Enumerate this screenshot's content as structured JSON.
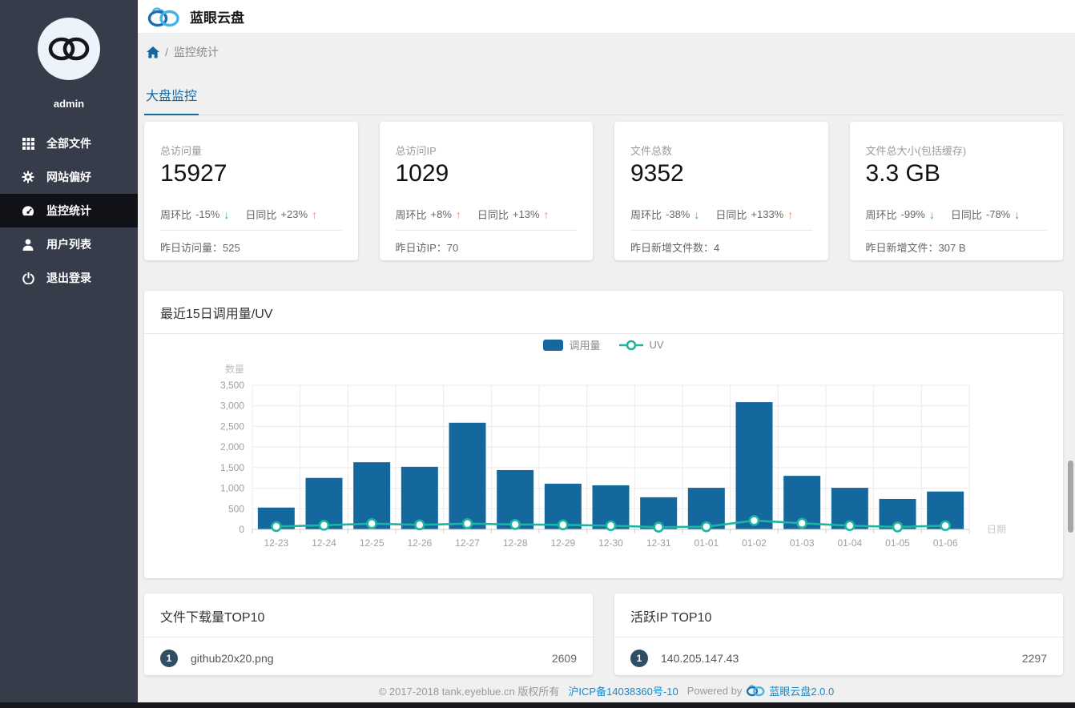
{
  "app": {
    "title": "蓝眼云盘"
  },
  "sidebar": {
    "username": "admin",
    "items": [
      {
        "label": "全部文件",
        "icon": "grid-icon",
        "active": false
      },
      {
        "label": "网站偏好",
        "icon": "gear-icon",
        "active": false
      },
      {
        "label": "监控统计",
        "icon": "dashboard-icon",
        "active": true
      },
      {
        "label": "用户列表",
        "icon": "user-icon",
        "active": false
      },
      {
        "label": "退出登录",
        "icon": "power-icon",
        "active": false
      }
    ]
  },
  "breadcrumb": {
    "separator": "/",
    "current": "监控统计"
  },
  "tabs": {
    "active_label": "大盘监控"
  },
  "icons": {
    "arrow_up": "↑",
    "arrow_down": "↓"
  },
  "stat_cards": [
    {
      "label": "总访问量",
      "value": "15927",
      "trends": [
        {
          "label": "周环比",
          "value": "-15%",
          "direction": "down"
        },
        {
          "label": "日同比",
          "value": "+23%",
          "direction": "up"
        }
      ],
      "footer_label": "昨日访问量：",
      "footer_value": "525"
    },
    {
      "label": "总访问IP",
      "value": "1029",
      "trends": [
        {
          "label": "周环比",
          "value": "+8%",
          "direction": "up"
        },
        {
          "label": "日同比",
          "value": "+13%",
          "direction": "up"
        }
      ],
      "footer_label": "昨日访IP：",
      "footer_value": "70"
    },
    {
      "label": "文件总数",
      "value": "9352",
      "trends": [
        {
          "label": "周环比",
          "value": "-38%",
          "direction": "down"
        },
        {
          "label": "日同比",
          "value": "+133%",
          "direction": "up"
        }
      ],
      "footer_label": "昨日新增文件数：",
      "footer_value": "4"
    },
    {
      "label": "文件总大小(包括缓存)",
      "value": "3.3 GB",
      "trends": [
        {
          "label": "周环比",
          "value": "-99%",
          "direction": "down"
        },
        {
          "label": "日同比",
          "value": "-78%",
          "direction": "down"
        }
      ],
      "footer_label": "昨日新增文件：",
      "footer_value": "307 B"
    }
  ],
  "chart_card": {
    "title": "最近15日调用量/UV"
  },
  "chart_data": {
    "type": "bar",
    "title": "最近15日调用量/UV",
    "categories": [
      "12-23",
      "12-24",
      "12-25",
      "12-26",
      "12-27",
      "12-28",
      "12-29",
      "12-30",
      "12-31",
      "01-01",
      "01-02",
      "01-03",
      "01-04",
      "01-05",
      "01-06"
    ],
    "series": [
      {
        "name": "调用量",
        "type": "bar",
        "color": "#15689e",
        "values": [
          530,
          1250,
          1630,
          1520,
          2590,
          1440,
          1110,
          1070,
          780,
          1010,
          3090,
          1300,
          1010,
          740,
          920
        ]
      },
      {
        "name": "UV",
        "type": "line",
        "color": "#1cb5a0",
        "values": [
          70,
          100,
          140,
          110,
          140,
          120,
          110,
          90,
          55,
          65,
          215,
          150,
          90,
          60,
          90
        ]
      }
    ],
    "xlabel": "日期",
    "ylabel": "数量",
    "ylim": [
      0,
      3500
    ],
    "yticks": [
      "0",
      "500",
      "1,000",
      "1,500",
      "2,000",
      "2,500",
      "3,000",
      "3,500"
    ],
    "grid": true,
    "legend_position": "top-center"
  },
  "top_lists": [
    {
      "title": "文件下载量TOP10",
      "items": [
        {
          "rank": "1",
          "label": "github20x20.png",
          "value": "2609"
        }
      ]
    },
    {
      "title": "活跃IP TOP10",
      "items": [
        {
          "rank": "1",
          "label": "140.205.147.43",
          "value": "2297"
        }
      ]
    }
  ],
  "footer": {
    "copyright": "© 2017-2018 tank.eyeblue.cn 版权所有",
    "icp_link": "沪ICP备14038360号-10",
    "powered_by": "Powered by",
    "product_link": "蓝眼云盘2.0.0"
  },
  "colors": {
    "accent_blue": "#15689e",
    "bar_blue": "#15689e",
    "line_teal": "#1cb5a0",
    "arrow_up_orange": "#f5876f",
    "arrow_down_teal": "#19b394",
    "sidebar_bg": "#373c4b",
    "sidebar_active_bg": "#101217",
    "link_blue": "#1589cf",
    "badge_bg": "#2e4e63",
    "page_bg": "#f0f0f0"
  }
}
